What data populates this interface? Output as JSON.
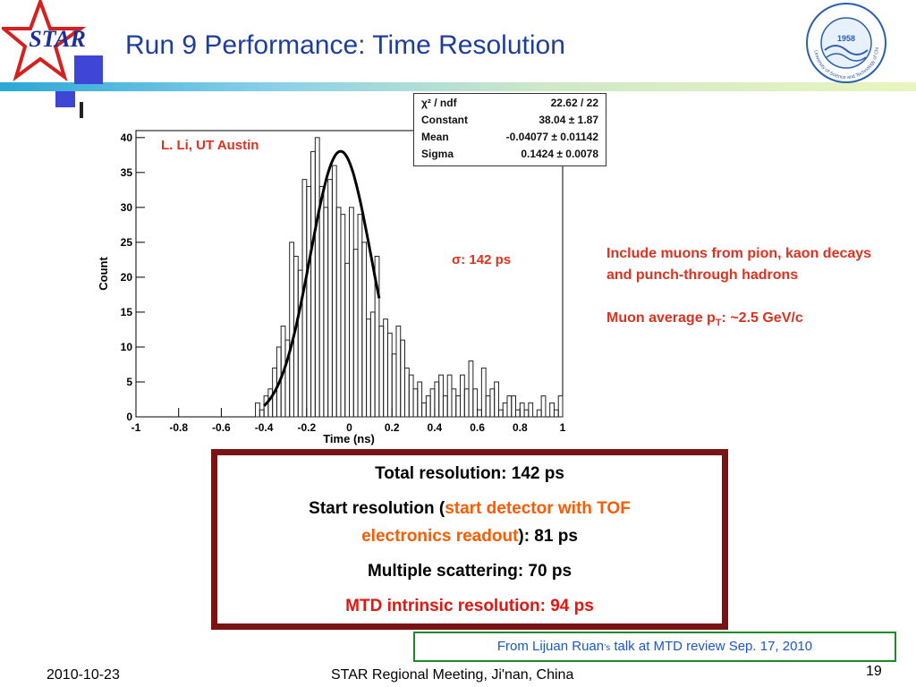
{
  "slide": {
    "title": "Run 9 Performance: Time Resolution",
    "logo_text": "STAR",
    "seal_year": "1958",
    "seal_text": "University of Science and Technology of China",
    "author": "L. Li, UT Austin",
    "sigma_label": "σ: 142 ps",
    "note_line1": "Include muons from pion, kaon decays  and punch-through hadrons",
    "note_line2_prefix": "Muon average p",
    "note_line2_sub": "T",
    "note_line2_suffix": ": ~2.5 GeV/c",
    "results": {
      "total": "Total resolution: 142 ps",
      "start_prefix": "Start resolution (",
      "start_highlight_1": "start detector with TOF",
      "start_highlight_2": "electronics readout",
      "start_suffix": "): 81 ps",
      "multiple": "Multiple scattering: 70 ps",
      "mtd": "MTD intrinsic resolution: 94 ps"
    },
    "source_prefix": "From Lijuan Ruan",
    "source_apostrophe": "’s",
    "source_suffix": " talk at MTD review Sep. 17, 2010",
    "footer_date": "2010-10-23",
    "footer_meeting": "STAR Regional Meeting, Ji'nan, China",
    "page_number": "19"
  },
  "fit_stats": [
    {
      "label": "χ² / ndf",
      "value": "22.62 / 22"
    },
    {
      "label": "Constant",
      "value": "38.04 ± 1.87"
    },
    {
      "label": "Mean",
      "value": "-0.04077 ± 0.01142"
    },
    {
      "label": "Sigma",
      "value": "0.1424 ± 0.0078"
    }
  ],
  "colors": {
    "title": "#1f3e9a",
    "highlight_red": "#e0301e",
    "highlight_orange": "#ff5a00",
    "result_frame": "#7a1414",
    "source_border": "#1a8c2a",
    "source_text": "#1a57c9"
  },
  "chart_data": {
    "type": "histogram",
    "xlabel": "Time (ns)",
    "ylabel": "Count",
    "xlim": [
      -1,
      1
    ],
    "ylim": [
      0,
      41
    ],
    "x_ticks": [
      -1,
      -0.8,
      -0.6,
      -0.4,
      -0.2,
      0,
      0.2,
      0.4,
      0.6,
      0.8,
      1
    ],
    "x_tick_labels": [
      "-1",
      "-0.8",
      "-0.6",
      "-0.4",
      "-0.2",
      "0",
      "0.2",
      "0.4",
      "0.6",
      "0.8",
      "1"
    ],
    "y_ticks": [
      0,
      5,
      10,
      15,
      20,
      25,
      30,
      35,
      40
    ],
    "y_tick_labels": [
      "0",
      "5",
      "10",
      "15",
      "20",
      "25",
      "30",
      "35",
      "40"
    ],
    "bin_width": 0.02,
    "bin_start": -1.0,
    "counts": [
      0,
      0,
      0,
      0,
      0,
      0,
      0,
      0,
      0,
      0,
      0,
      0,
      0,
      0,
      0,
      0,
      0,
      0,
      0,
      0,
      0,
      0,
      0,
      0,
      0,
      0,
      0,
      0,
      2,
      1,
      3,
      4,
      7,
      10,
      13,
      11,
      25,
      23,
      21,
      34,
      33,
      38,
      40,
      33,
      30,
      34,
      36,
      30,
      29,
      22,
      30,
      24,
      29,
      25,
      14,
      15,
      23,
      13,
      14,
      12,
      9,
      13,
      11,
      7,
      6,
      4,
      5,
      2,
      3,
      4,
      5,
      6,
      3,
      6,
      4,
      3,
      6,
      4,
      8,
      4,
      1,
      7,
      3,
      4,
      5,
      1,
      2,
      3,
      3,
      1,
      2,
      1,
      2,
      0,
      1,
      3,
      0,
      2,
      1,
      3
    ],
    "fit": {
      "constant": 38.04,
      "mean": -0.04077,
      "sigma": 0.1424,
      "range": [
        -0.4,
        0.14
      ]
    }
  }
}
